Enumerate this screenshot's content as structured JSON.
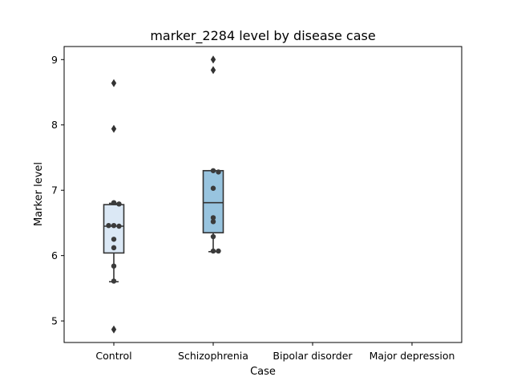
{
  "chart_data": {
    "type": "box",
    "title": "marker_2284 level by disease case",
    "xlabel": "Case",
    "ylabel": "Marker level",
    "categories": [
      "Control",
      "Schizophrenia",
      "Bipolar disorder",
      "Major depression"
    ],
    "ylim": [
      4.67,
      9.2
    ],
    "yticks": [
      5,
      6,
      7,
      8,
      9
    ],
    "colors": {
      "Control": "#dbe8f5",
      "Schizophrenia": "#98c4df",
      "line": "#333333",
      "point": "#3b3b3b"
    },
    "boxes": [
      {
        "category": "Control",
        "q1": 6.04,
        "median": 6.45,
        "q3": 6.78,
        "whisker_low": 5.6,
        "whisker_high": 6.8,
        "outliers": [
          4.87,
          7.94,
          8.64
        ],
        "points": [
          6.81,
          6.79,
          6.46,
          6.45,
          6.46,
          6.25,
          6.12,
          5.84,
          5.61
        ]
      },
      {
        "category": "Schizophrenia",
        "q1": 6.35,
        "median": 6.81,
        "q3": 7.3,
        "whisker_low": 6.06,
        "whisker_high": 7.3,
        "outliers": [
          8.84,
          9.0
        ],
        "points": [
          7.3,
          7.28,
          7.03,
          6.58,
          6.52,
          6.29,
          6.07,
          6.07
        ]
      },
      {
        "category": "Bipolar disorder"
      },
      {
        "category": "Major depression"
      }
    ]
  }
}
